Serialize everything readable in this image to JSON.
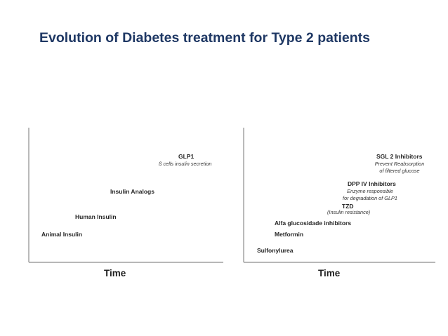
{
  "title": "Evolution of Diabetes treatment for Type 2 patients",
  "left_panel": {
    "axis_label": "Time",
    "items": [
      {
        "label": "GLP1",
        "sub": "ß cells insulin secretion"
      },
      {
        "label": "Insulin Analogs"
      },
      {
        "label": "Human Insulin"
      },
      {
        "label": "Animal Insulin"
      }
    ]
  },
  "right_panel": {
    "axis_label": "Time",
    "items": [
      {
        "label": "SGL 2 Inhibitors",
        "sub": [
          "Prevent Reabsorption",
          "of filtered glucose"
        ]
      },
      {
        "label": "DPP IV Inhibitors",
        "sub": [
          "Enzyme responsible",
          "for degradation of GLP1"
        ]
      },
      {
        "label": "TZD",
        "sub": "(Insulin resistance)"
      },
      {
        "label": "Alfa glucosidade inhibitors"
      },
      {
        "label": "Metformin"
      },
      {
        "label": "Sulfonylurea"
      }
    ]
  },
  "colors": {
    "title": "#1f3864",
    "axis": "#8c8c8c",
    "text": "#262626"
  }
}
